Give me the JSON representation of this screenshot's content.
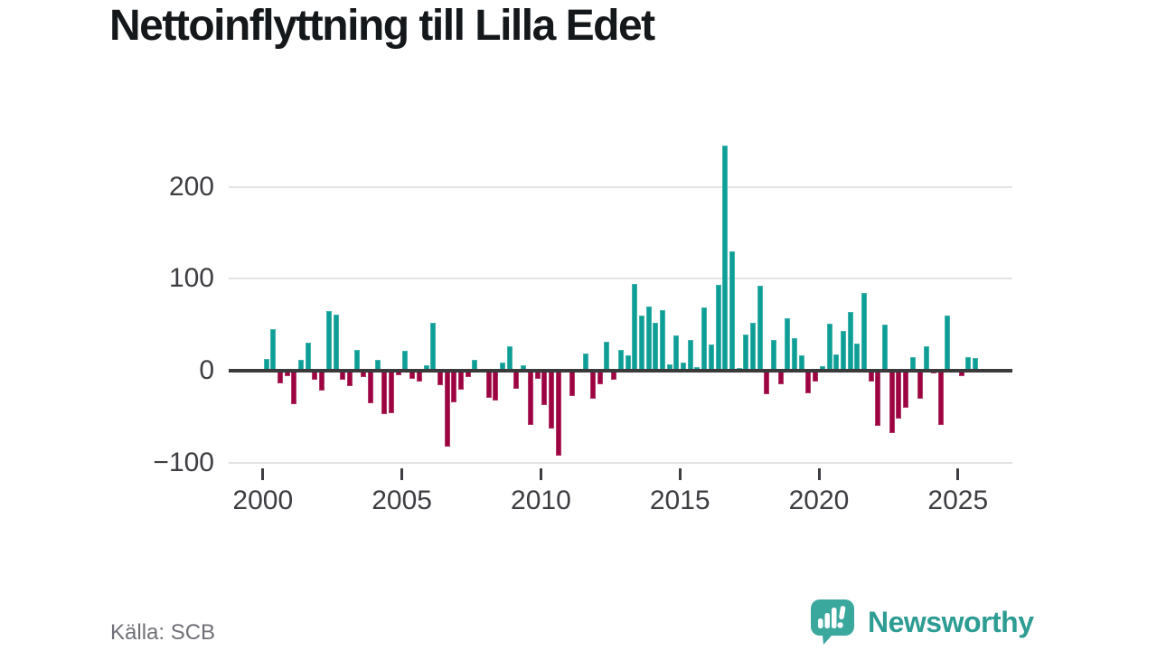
{
  "title": "Nettoinflyttning till Lilla Edet",
  "source": "Källa: SCB",
  "brand": {
    "name": "Newsworthy"
  },
  "chart_data": {
    "type": "bar",
    "title": "Nettoinflyttning till Lilla Edet",
    "period": "quarterly",
    "start": {
      "year": 2000,
      "quarter": 1
    },
    "values": [
      13,
      45,
      -14,
      -6,
      -36,
      12,
      31,
      -10,
      -22,
      65,
      61,
      -10,
      -17,
      23,
      -7,
      -35,
      12,
      -47,
      -46,
      -5,
      22,
      -9,
      -12,
      6,
      52,
      -16,
      -83,
      -34,
      -21,
      -7,
      12,
      0,
      -29,
      -32,
      9,
      27,
      -20,
      6,
      -59,
      -9,
      -37,
      -63,
      -92,
      2,
      -27,
      0,
      19,
      -30,
      -15,
      32,
      -10,
      23,
      17,
      94,
      60,
      70,
      52,
      66,
      7,
      38,
      9,
      33,
      4,
      69,
      29,
      93,
      245,
      130,
      3,
      39,
      52,
      92,
      -26,
      33,
      -15,
      57,
      35,
      17,
      -25,
      -12,
      5,
      51,
      18,
      43,
      64,
      30,
      85,
      -12,
      -60,
      50,
      -68,
      -52,
      -40,
      15,
      -30,
      27,
      -3,
      -59,
      60,
      0,
      -6,
      15,
      14
    ],
    "yticks": [
      200,
      100,
      0,
      -100
    ],
    "xticks": [
      2000,
      2005,
      2010,
      2015,
      2020,
      2025
    ],
    "ylim": [
      -115,
      256
    ],
    "grid": "horizontal",
    "legend": "none",
    "colors": {
      "positive": "#0d9e96",
      "negative": "#9c0340"
    }
  }
}
